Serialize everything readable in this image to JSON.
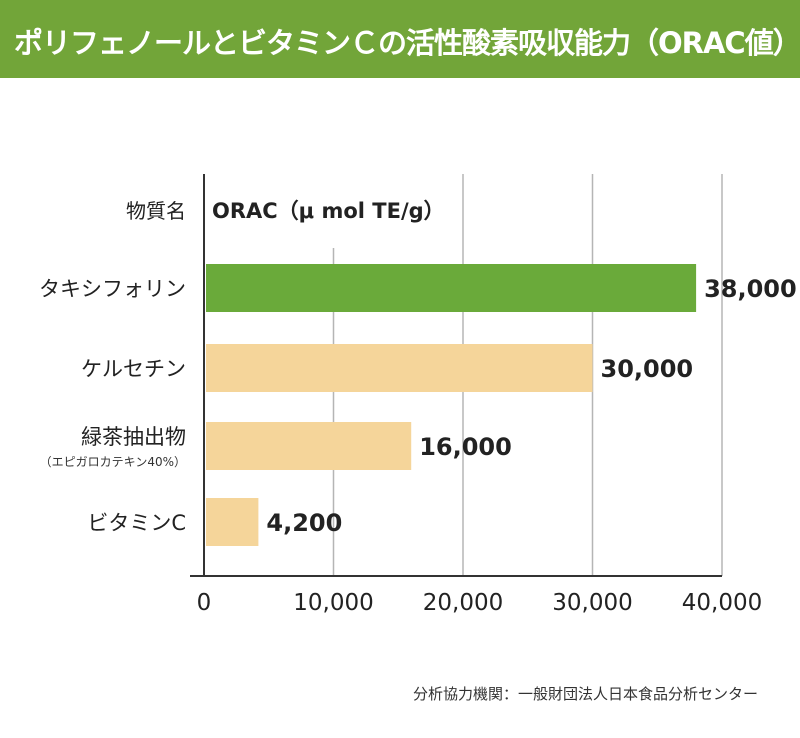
{
  "header": {
    "title": "ポリフェノールとビタミンＣの活性酸素吸収能力（ORAC値）"
  },
  "colors": {
    "header_bg": "#72a539",
    "highlight_bar": "#6aaa3a",
    "bar": "#f5d59a",
    "gridline": "#b5b5b5",
    "axis": "#333333"
  },
  "chart_data": {
    "type": "bar",
    "orientation": "horizontal",
    "category_header": "物質名",
    "value_header": "ORAC（μ mol TE/g）",
    "categories": [
      {
        "label": "タキシフォリン",
        "sublabel": ""
      },
      {
        "label": "ケルセチン",
        "sublabel": ""
      },
      {
        "label": "緑茶抽出物",
        "sublabel": "（エピガロカテキン40%）"
      },
      {
        "label": "ビタミンC",
        "sublabel": ""
      }
    ],
    "values": [
      38000,
      30000,
      16000,
      4200
    ],
    "value_labels": [
      "38,000",
      "30,000",
      "16,000",
      "4,200"
    ],
    "highlight_index": 0,
    "xlim": [
      0,
      40000
    ],
    "xticks": [
      0,
      10000,
      20000,
      30000,
      40000
    ],
    "xtick_labels": [
      "0",
      "10,000",
      "20,000",
      "30,000",
      "40,000"
    ],
    "grid": true
  },
  "source": "分析協力機関：一般財団法人日本食品分析センター"
}
